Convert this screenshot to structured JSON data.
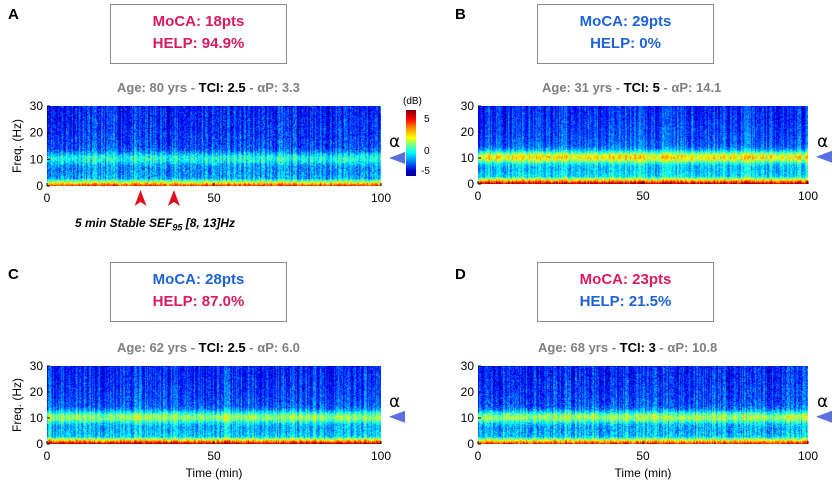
{
  "panels": [
    {
      "letter": "A",
      "moca_label": "MoCA: 18pts",
      "moca_color": "#d81b60",
      "help_label": "HELP: 94.9%",
      "help_color": "#d81b60",
      "age": "Age: 80 yrs",
      "tci_label": "TCI:",
      "tci_value": "2.5",
      "ap_label": "αP:",
      "ap_value": "3.3",
      "alpha_symbol": "α",
      "show_time_label": false,
      "show_freq_label": true
    },
    {
      "letter": "B",
      "moca_label": "MoCA: 29pts",
      "moca_color": "#1e63d6",
      "help_label": "HELP: 0%",
      "help_color": "#1e63d6",
      "age": "Age: 31 yrs",
      "tci_label": "TCI:",
      "tci_value": "5",
      "ap_label": "αP:",
      "ap_value": "14.1",
      "alpha_symbol": "α",
      "show_time_label": false,
      "show_freq_label": false
    },
    {
      "letter": "C",
      "moca_label": "MoCA: 28pts",
      "moca_color": "#1e63d6",
      "help_label": "HELP: 87.0%",
      "help_color": "#d81b60",
      "age": "Age: 62 yrs",
      "tci_label": "TCI:",
      "tci_value": "2.5",
      "ap_label": "αP:",
      "ap_value": "6.0",
      "alpha_symbol": "α",
      "show_time_label": true,
      "show_freq_label": true
    },
    {
      "letter": "D",
      "moca_label": "MoCA: 23pts",
      "moca_color": "#d81b60",
      "help_label": "HELP: 21.5%",
      "help_color": "#1e63d6",
      "age": "Age: 68 yrs",
      "tci_label": "TCI:",
      "tci_value": "3",
      "ap_label": "αP:",
      "ap_value": "10.8",
      "alpha_symbol": "α",
      "show_time_label": true,
      "show_freq_label": false
    }
  ],
  "sef_note": {
    "prefix": "5 min Stable SEF",
    "sub": "95",
    "suffix": " [8, 13]Hz"
  },
  "colorbar": {
    "unit": "(dB)",
    "ticks": [
      "5",
      "0",
      "-5"
    ],
    "range": [
      -7,
      7
    ]
  },
  "chart_data": [
    {
      "type": "heatmap",
      "title": "A",
      "xlabel": "",
      "ylabel": "Freq. (Hz)",
      "xlim": [
        0,
        100
      ],
      "ylim": [
        0,
        30
      ],
      "xticks": [
        "0",
        "50",
        "100"
      ],
      "yticks": [
        "0",
        "10",
        "20",
        "30"
      ],
      "alpha_marker_hz": 10.5,
      "stable_sef_markers_min": [
        28,
        38
      ]
    },
    {
      "type": "heatmap",
      "title": "B",
      "xlabel": "",
      "ylabel": "",
      "xlim": [
        0,
        100
      ],
      "ylim": [
        0,
        30
      ],
      "xticks": [
        "0",
        "50",
        "100"
      ],
      "yticks": [
        "0",
        "10",
        "20",
        "30"
      ],
      "alpha_marker_hz": 10.5
    },
    {
      "type": "heatmap",
      "title": "C",
      "xlabel": "Time (min)",
      "ylabel": "Freq. (Hz)",
      "xlim": [
        0,
        100
      ],
      "ylim": [
        0,
        30
      ],
      "xticks": [
        "0",
        "50",
        "100"
      ],
      "yticks": [
        "0",
        "10",
        "20",
        "30"
      ],
      "alpha_marker_hz": 10.5
    },
    {
      "type": "heatmap",
      "title": "D",
      "xlabel": "Time (min)",
      "ylabel": "",
      "xlim": [
        0,
        100
      ],
      "ylim": [
        0,
        30
      ],
      "xticks": [
        "0",
        "50",
        "100"
      ],
      "yticks": [
        "0",
        "10",
        "20",
        "30"
      ],
      "alpha_marker_hz": 10.5
    }
  ]
}
